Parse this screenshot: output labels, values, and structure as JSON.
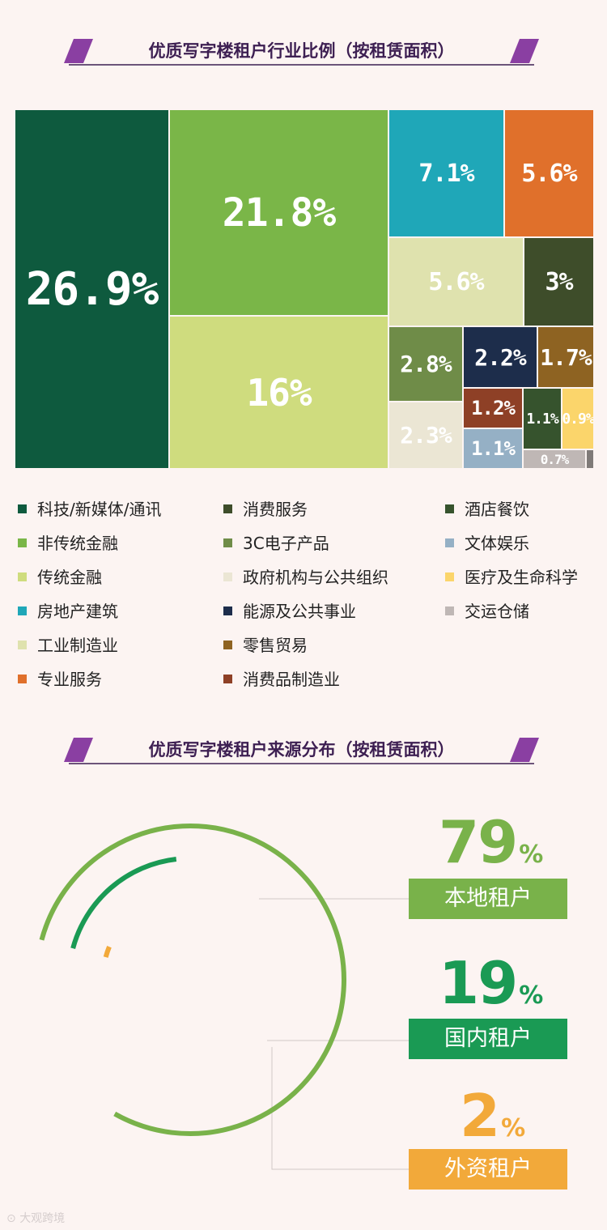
{
  "section1": {
    "title": "优质写字楼租户行业比例（按租赁面积）"
  },
  "chart_data": [
    {
      "type": "treemap",
      "title": "优质写字楼租户行业比例（按租赁面积）",
      "legend_placement": "bottom",
      "items": [
        {
          "category": "科技/新媒体/通讯",
          "value": 26.9,
          "label": "26.9%",
          "color": "#0e5a3e"
        },
        {
          "category": "非传统金融",
          "value": 21.8,
          "label": "21.8%",
          "color": "#7ab648"
        },
        {
          "category": "传统金融",
          "value": 16,
          "label": "16%",
          "color": "#cfdc7e"
        },
        {
          "category": "房地产建筑",
          "value": 7.1,
          "label": "7.1%",
          "color": "#1fa7b8"
        },
        {
          "category": "专业服务",
          "value": 5.6,
          "label": "5.6%",
          "color": "#e0702b"
        },
        {
          "category": "工业制造业",
          "value": 5.6,
          "label": "5.6%",
          "color": "#dfe2ae"
        },
        {
          "category": "消费服务",
          "value": 3,
          "label": "3%",
          "color": "#3e4d2a"
        },
        {
          "category": "3C电子产品",
          "value": 2.8,
          "label": "2.8%",
          "color": "#6f8c48"
        },
        {
          "category": "政府机构与公共组织",
          "value": 2.3,
          "label": "2.3%",
          "color": "#ebe6d4"
        },
        {
          "category": "能源及公共事业",
          "value": 2.2,
          "label": "2.2%",
          "color": "#1d2d4b"
        },
        {
          "category": "零售贸易",
          "value": 1.7,
          "label": "1.7%",
          "color": "#8e6322"
        },
        {
          "category": "消费品制造业",
          "value": 1.2,
          "label": "1.2%",
          "color": "#8e4026"
        },
        {
          "category": "文体娱乐",
          "value": 1.1,
          "label": "1.1%",
          "color": "#95b0c5"
        },
        {
          "category": "酒店餐饮",
          "value": 1.1,
          "label": "1.1%",
          "color": "#36532d"
        },
        {
          "category": "医疗及生命科学",
          "value": 0.9,
          "label": "0.9%",
          "color": "#fbd56b"
        },
        {
          "category": "交运仓储",
          "value": 0.7,
          "label": "0.7%",
          "color": "#bfb7b5"
        },
        {
          "category": "",
          "value": 0.3,
          "label": "",
          "color": "#7f7a78"
        }
      ]
    },
    {
      "type": "radial-bar",
      "title": "优质写字楼租户来源分布（按租赁面积）",
      "series": [
        {
          "name": "本地租户",
          "value": 79,
          "unit": "%",
          "color": "#79b24a"
        },
        {
          "name": "国内租户",
          "value": 19,
          "unit": "%",
          "color": "#1a9a54"
        },
        {
          "name": "外资租户",
          "value": 2,
          "unit": "%",
          "color": "#f2a93a"
        }
      ]
    }
  ],
  "legend": [
    {
      "label": "科技/新媒体/通讯",
      "color": "#0e5a3e"
    },
    {
      "label": "非传统金融",
      "color": "#7ab648"
    },
    {
      "label": "传统金融",
      "color": "#cfdc7e"
    },
    {
      "label": "房地产建筑",
      "color": "#1fa7b8"
    },
    {
      "label": "工业制造业",
      "color": "#dfe2ae"
    },
    {
      "label": "专业服务",
      "color": "#e0702b"
    },
    {
      "label": "消费服务",
      "color": "#3e4d2a"
    },
    {
      "label": "3C电子产品",
      "color": "#6f8c48"
    },
    {
      "label": "政府机构与公共组织",
      "color": "#ebe6d4"
    },
    {
      "label": "能源及公共事业",
      "color": "#1d2d4b"
    },
    {
      "label": "零售贸易",
      "color": "#8e6322"
    },
    {
      "label": "消费品制造业",
      "color": "#8e4026"
    },
    {
      "label": "酒店餐饮",
      "color": "#36532d"
    },
    {
      "label": "文体娱乐",
      "color": "#95b0c5"
    },
    {
      "label": "医疗及生命科学",
      "color": "#fbd56b"
    },
    {
      "label": "交运仓储",
      "color": "#bfb7b5"
    }
  ],
  "section2": {
    "title": "优质写字楼租户来源分布（按租赁面积）"
  },
  "sources": [
    {
      "value": "79",
      "unit": "%",
      "label": "本地租户",
      "color": "#79b24a"
    },
    {
      "value": "19",
      "unit": "%",
      "label": "国内租户",
      "color": "#1a9a54"
    },
    {
      "value": "2",
      "unit": "%",
      "label": "外资租户",
      "color": "#f2a93a"
    }
  ],
  "watermark": "大观跨境"
}
